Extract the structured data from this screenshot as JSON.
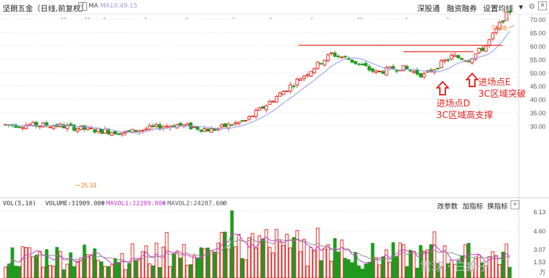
{
  "header": {
    "title": "坚朗五金（日线,前复权）",
    "help": "?",
    "ma_label": "MA",
    "ma10": "MA10:49.15",
    "buttons": [
      "深股通",
      "融资融券",
      "设置均线"
    ]
  },
  "price_axis": [
    "70.00",
    "65.00",
    "60.00",
    "55.00",
    "50.00",
    "45.00",
    "40.00",
    "35.00",
    "30.00"
  ],
  "price_high_label": "74.88",
  "price_low_label": "25.33",
  "annotations": [
    {
      "lines": [
        "进场点D",
        "3C区域高支撑"
      ]
    },
    {
      "lines": [
        "进场点E",
        "3C区域突破"
      ]
    }
  ],
  "volume_panel": {
    "label": "VOL(5,10)",
    "volume": "VOLUME:31909.000",
    "mavol1": "MAVOL1:22209.800",
    "mavol2": "MAVOL2:24287.600",
    "buttons": [
      "改参数",
      "加指标",
      "换指标"
    ],
    "axis": [
      "6.13",
      "4.60",
      "3.07",
      "1.53"
    ],
    "unit": "万"
  },
  "watermark": "雪球 · 白癫子",
  "colors": {
    "up": "#e8231f",
    "down": "#1f9a1f",
    "ma": "#9aa6ef",
    "mavol1": "#cc33cc",
    "mavol2": "#888888",
    "grid": "#e8e8e8"
  }
}
